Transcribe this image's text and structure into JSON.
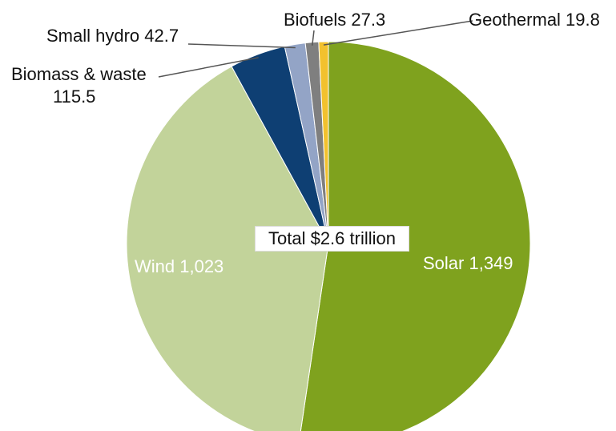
{
  "chart_data": {
    "type": "pie",
    "title": "",
    "center_label": "Total $2.6 trillion",
    "slices": [
      {
        "name": "Solar",
        "value": 1349,
        "label": "Solar 1,349",
        "color": "#7fa21e"
      },
      {
        "name": "Wind",
        "value": 1023,
        "label": "Wind 1,023",
        "color": "#c2d39a"
      },
      {
        "name": "Biomass & waste",
        "value": 115.5,
        "label_line1": "Biomass & waste",
        "label_line2": "115.5",
        "color": "#0e3f73"
      },
      {
        "name": "Small hydro",
        "value": 42.7,
        "label": "Small hydro 42.7",
        "color": "#93a4c6"
      },
      {
        "name": "Biofuels",
        "value": 27.3,
        "label": "Biofuels 27.3",
        "color": "#7f7f7f"
      },
      {
        "name": "Geothermal",
        "value": 19.8,
        "label": "Geothermal 19.8",
        "color": "#f2c12e"
      }
    ]
  }
}
